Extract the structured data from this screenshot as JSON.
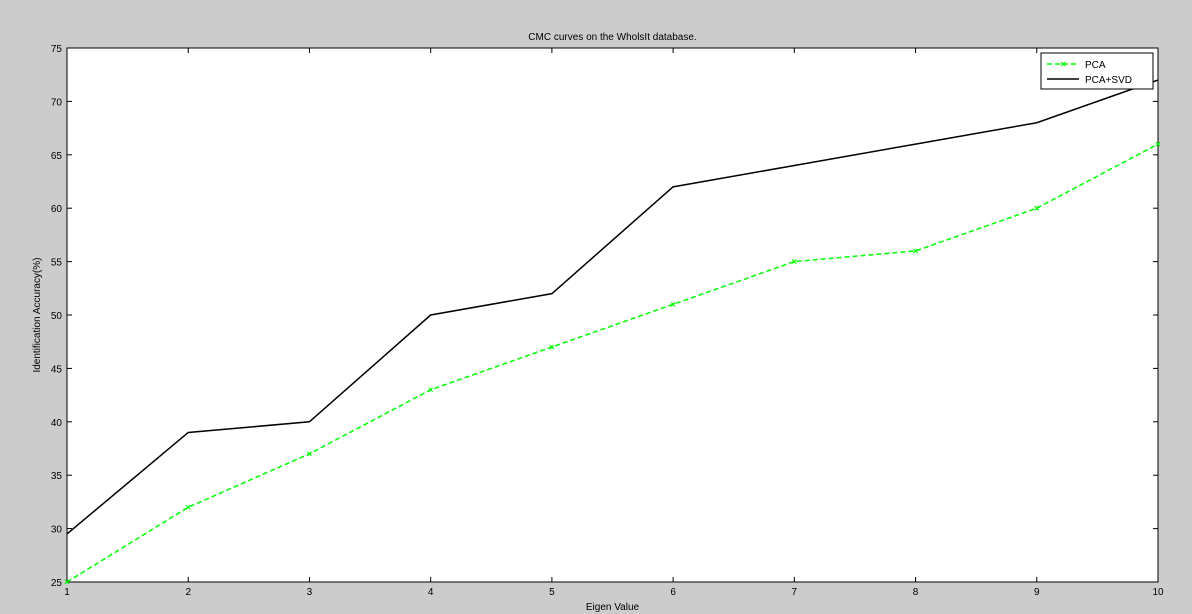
{
  "chart_data": {
    "type": "line",
    "title": "CMC curves on the WholsIt database.",
    "xlabel": "Eigen Value",
    "ylabel": "Identification Accuracy(%)",
    "xlim": [
      1,
      10
    ],
    "ylim": [
      25,
      75
    ],
    "x_ticks": [
      1,
      2,
      3,
      4,
      5,
      6,
      7,
      8,
      9,
      10
    ],
    "y_ticks": [
      25,
      30,
      35,
      40,
      45,
      50,
      55,
      60,
      65,
      70,
      75
    ],
    "x_tick_labels": [
      "1",
      "2",
      "3",
      "4",
      "5",
      "6",
      "7",
      "8",
      "9",
      "10"
    ],
    "y_tick_labels": [
      "25",
      "30",
      "35",
      "40",
      "45",
      "50",
      "55",
      "60",
      "65",
      "70",
      "75"
    ],
    "grid": false,
    "legend_position": "top-right",
    "x": [
      1,
      2,
      3,
      4,
      5,
      6,
      7,
      8,
      9,
      10
    ],
    "series": [
      {
        "name": "PCA",
        "values": [
          25,
          32,
          37,
          43,
          47,
          51,
          55,
          56,
          60,
          66
        ],
        "color": "#00ff00",
        "style": "dashed",
        "marker": "x"
      },
      {
        "name": "PCA+SVD",
        "values": [
          29.5,
          39,
          40,
          50,
          52,
          62,
          64,
          66,
          68,
          72
        ],
        "color": "#000000",
        "style": "solid",
        "marker": "none"
      }
    ]
  },
  "colors": {
    "figure_background": "#cccccc",
    "axes_background": "#ffffff",
    "axes_edge": "#000000"
  }
}
